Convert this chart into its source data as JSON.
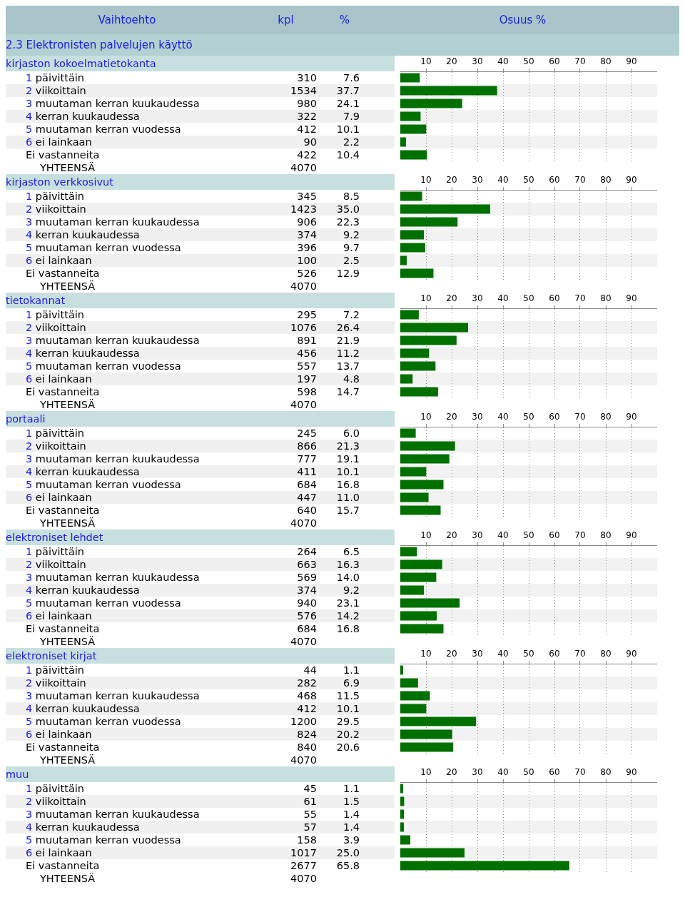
{
  "chart_data": [
    {
      "type": "other",
      "title": "2.3 Elektronisten palvelujen käyttö",
      "annotations": [
        "Vaihtoehto",
        "kpl",
        "%",
        "Osuus %"
      ]
    },
    {
      "type": "bar",
      "orientation": "horizontal",
      "title": "kirjaston kokoelmatietokanta",
      "categories": [
        "1 päivittäin",
        "2 viikoittain",
        "3 muutaman kerran kuukaudessa",
        "4 kerran kuukaudessa",
        "5 muutaman kerran vuodessa",
        "6 ei lainkaan",
        "Ei vastanneita"
      ],
      "color": "#007000",
      "grid": "x",
      "x2lim": [
        0,
        100
      ],
      "x2ticks": [
        10,
        20,
        30,
        40,
        50,
        60,
        70,
        80,
        90
      ],
      "values": [
        7.6,
        37.7,
        24.1,
        7.9,
        10.1,
        2.2,
        10.4
      ],
      "value_labels": [
        "7.6",
        "37.7",
        "24.1",
        "7.9",
        "10.1",
        "2.2",
        "10.4"
      ],
      "annotations": [
        "310",
        "1534",
        "980",
        "322",
        "412",
        "90",
        "422",
        "YHTEENSÄ",
        "4070"
      ]
    },
    {
      "type": "bar",
      "orientation": "horizontal",
      "title": "kirjaston verkkosivut",
      "categories": [
        "1 päivittäin",
        "2 viikoittain",
        "3 muutaman kerran kuukaudessa",
        "4 kerran kuukaudessa",
        "5 muutaman kerran vuodessa",
        "6 ei lainkaan",
        "Ei vastanneita"
      ],
      "color": "#007000",
      "grid": "x",
      "x2lim": [
        0,
        100
      ],
      "x2ticks": [
        10,
        20,
        30,
        40,
        50,
        60,
        70,
        80,
        90
      ],
      "values": [
        8.5,
        35.0,
        22.3,
        9.2,
        9.7,
        2.5,
        12.9
      ],
      "value_labels": [
        "8.5",
        "35.0",
        "22.3",
        "9.2",
        "9.7",
        "2.5",
        "12.9"
      ],
      "annotations": [
        "345",
        "1423",
        "906",
        "374",
        "396",
        "100",
        "526",
        "YHTEENSÄ",
        "4070"
      ]
    },
    {
      "type": "bar",
      "orientation": "horizontal",
      "title": "tietokannat",
      "categories": [
        "1 päivittäin",
        "2 viikoittain",
        "3 muutaman kerran kuukaudessa",
        "4 kerran kuukaudessa",
        "5 muutaman kerran vuodessa",
        "6 ei lainkaan",
        "Ei vastanneita"
      ],
      "color": "#007000",
      "grid": "x",
      "x2lim": [
        0,
        100
      ],
      "x2ticks": [
        10,
        20,
        30,
        40,
        50,
        60,
        70,
        80,
        90
      ],
      "values": [
        7.2,
        26.4,
        21.9,
        11.2,
        13.7,
        4.8,
        14.7
      ],
      "value_labels": [
        "7.2",
        "26.4",
        "21.9",
        "11.2",
        "13.7",
        "4.8",
        "14.7"
      ],
      "annotations": [
        "295",
        "1076",
        "891",
        "456",
        "557",
        "197",
        "598",
        "YHTEENSÄ",
        "4070"
      ]
    },
    {
      "type": "bar",
      "orientation": "horizontal",
      "title": "portaali",
      "categories": [
        "1 päivittäin",
        "2 viikoittain",
        "3 muutaman kerran kuukaudessa",
        "4 kerran kuukaudessa",
        "5 muutaman kerran vuodessa",
        "6 ei lainkaan",
        "Ei vastanneita"
      ],
      "color": "#007000",
      "grid": "x",
      "x2lim": [
        0,
        100
      ],
      "x2ticks": [
        10,
        20,
        30,
        40,
        50,
        60,
        70,
        80,
        90
      ],
      "values": [
        6.0,
        21.3,
        19.1,
        10.1,
        16.8,
        11.0,
        15.7
      ],
      "value_labels": [
        "6.0",
        "21.3",
        "19.1",
        "10.1",
        "16.8",
        "11.0",
        "15.7"
      ],
      "annotations": [
        "245",
        "866",
        "777",
        "411",
        "684",
        "447",
        "640",
        "YHTEENSÄ",
        "4070"
      ]
    },
    {
      "type": "bar",
      "orientation": "horizontal",
      "title": "elektroniset lehdet",
      "categories": [
        "1 päivittäin",
        "2 viikoittain",
        "3 muutaman kerran kuukaudessa",
        "4 kerran kuukaudessa",
        "5 muutaman kerran vuodessa",
        "6 ei lainkaan",
        "Ei vastanneita"
      ],
      "color": "#007000",
      "grid": "x",
      "x2lim": [
        0,
        100
      ],
      "x2ticks": [
        10,
        20,
        30,
        40,
        50,
        60,
        70,
        80,
        90
      ],
      "values": [
        6.5,
        16.3,
        14.0,
        9.2,
        23.1,
        14.2,
        16.8
      ],
      "value_labels": [
        "6.5",
        "16.3",
        "14.0",
        "9.2",
        "23.1",
        "14.2",
        "16.8"
      ],
      "annotations": [
        "264",
        "663",
        "569",
        "374",
        "940",
        "576",
        "684",
        "YHTEENSÄ",
        "4070"
      ]
    },
    {
      "type": "bar",
      "orientation": "horizontal",
      "title": "elektroniset kirjat",
      "categories": [
        "1 päivittäin",
        "2 viikoittain",
        "3 muutaman kerran kuukaudessa",
        "4 kerran kuukaudessa",
        "5 muutaman kerran vuodessa",
        "6 ei lainkaan",
        "Ei vastanneita"
      ],
      "color": "#007000",
      "grid": "x",
      "x2lim": [
        0,
        100
      ],
      "x2ticks": [
        10,
        20,
        30,
        40,
        50,
        60,
        70,
        80,
        90
      ],
      "values": [
        1.1,
        6.9,
        11.5,
        10.1,
        29.5,
        20.2,
        20.6
      ],
      "value_labels": [
        "1.1",
        "6.9",
        "11.5",
        "10.1",
        "29.5",
        "20.2",
        "20.6"
      ],
      "annotations": [
        "44",
        "282",
        "468",
        "412",
        "1200",
        "824",
        "840",
        "YHTEENSÄ",
        "4070"
      ]
    },
    {
      "type": "bar",
      "orientation": "horizontal",
      "title": "muu",
      "categories": [
        "1 päivittäin",
        "2 viikoittain",
        "3 muutaman kerran kuukaudessa",
        "4 kerran kuukaudessa",
        "5 muutaman kerran vuodessa",
        "6 ei lainkaan",
        "Ei vastanneita"
      ],
      "color": "#007000",
      "grid": "x",
      "x2lim": [
        0,
        100
      ],
      "x2ticks": [
        10,
        20,
        30,
        40,
        50,
        60,
        70,
        80,
        90
      ],
      "values": [
        1.1,
        1.5,
        1.4,
        1.4,
        3.9,
        25.0,
        65.8
      ],
      "value_labels": [
        "1.1",
        "1.5",
        "1.4",
        "1.4",
        "3.9",
        "25.0",
        "65.8"
      ],
      "annotations": [
        "45",
        "61",
        "55",
        "57",
        "158",
        "1017",
        "2677",
        "YHTEENSÄ",
        "4070"
      ]
    }
  ]
}
